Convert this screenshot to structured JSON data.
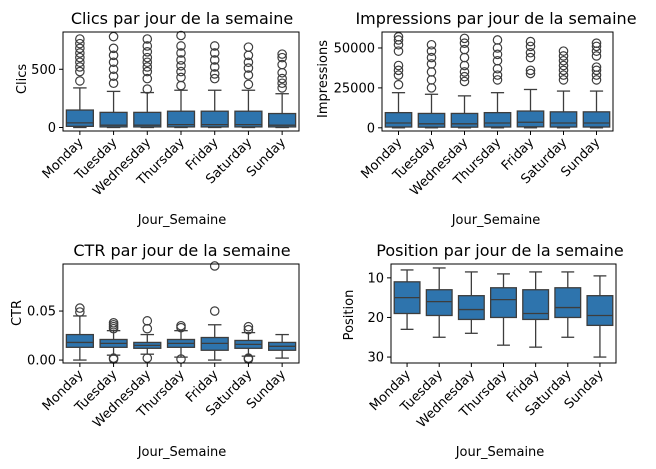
{
  "figure": {
    "background": "#ffffff",
    "box_color": "#2e74ad",
    "line_color": "#3d3d3d"
  },
  "chart_data": [
    {
      "type": "box",
      "title": "Clics par jour de la semaine",
      "xlabel": "Jour_Semaine",
      "ylabel": "Clics",
      "categories": [
        "Monday",
        "Tuesday",
        "Wednesday",
        "Thursday",
        "Friday",
        "Saturday",
        "Sunday"
      ],
      "ylim": [
        -30,
        820
      ],
      "yticks": [
        0,
        500
      ],
      "grid": false,
      "boxes": [
        {
          "whislo": 0,
          "q1": 10,
          "med": 40,
          "q3": 150,
          "whishi": 340,
          "fliers": [
            400,
            480,
            520,
            560,
            600,
            640,
            680,
            720,
            760
          ]
        },
        {
          "whislo": 0,
          "q1": 5,
          "med": 20,
          "q3": 130,
          "whishi": 310,
          "fliers": [
            380,
            440,
            500,
            560,
            620,
            680,
            780
          ]
        },
        {
          "whislo": 0,
          "q1": 5,
          "med": 20,
          "q3": 130,
          "whishi": 300,
          "fliers": [
            330,
            420,
            480,
            520,
            560,
            600,
            650,
            700,
            760
          ]
        },
        {
          "whislo": 0,
          "q1": 5,
          "med": 25,
          "q3": 140,
          "whishi": 320,
          "fliers": [
            360,
            430,
            480,
            530,
            580,
            640,
            700,
            790
          ]
        },
        {
          "whislo": 0,
          "q1": 5,
          "med": 25,
          "q3": 140,
          "whishi": 320,
          "fliers": [
            420,
            460,
            520,
            580,
            640,
            700
          ]
        },
        {
          "whislo": 0,
          "q1": 5,
          "med": 25,
          "q3": 140,
          "whishi": 320,
          "fliers": [
            370,
            450,
            510,
            560,
            620,
            690
          ]
        },
        {
          "whislo": 0,
          "q1": 5,
          "med": 20,
          "q3": 120,
          "whishi": 290,
          "fliers": [
            340,
            380,
            420,
            470,
            540,
            600,
            630
          ]
        }
      ]
    },
    {
      "type": "box",
      "title": "Impressions par jour de la semaine",
      "xlabel": "Jour_Semaine",
      "ylabel": "Impressions",
      "categories": [
        "Monday",
        "Tuesday",
        "Wednesday",
        "Thursday",
        "Friday",
        "Saturday",
        "Sunday"
      ],
      "ylim": [
        -2000,
        60000
      ],
      "yticks": [
        0,
        25000,
        50000
      ],
      "grid": false,
      "boxes": [
        {
          "whislo": 0,
          "q1": 500,
          "med": 3000,
          "q3": 9500,
          "whishi": 22000,
          "fliers": [
            27000,
            33000,
            36000,
            39000,
            48000,
            52000,
            55000,
            57000
          ]
        },
        {
          "whislo": 0,
          "q1": 400,
          "med": 2500,
          "q3": 9000,
          "whishi": 21000,
          "fliers": [
            25000,
            30000,
            35000,
            40000,
            44000,
            48000,
            52000
          ]
        },
        {
          "whislo": 0,
          "q1": 400,
          "med": 2500,
          "q3": 9000,
          "whishi": 20000,
          "fliers": [
            29000,
            32000,
            35000,
            39000,
            44000,
            49000,
            53000,
            56000
          ]
        },
        {
          "whislo": 0,
          "q1": 500,
          "med": 3000,
          "q3": 9500,
          "whishi": 22000,
          "fliers": [
            30000,
            33000,
            37000,
            42000,
            46000,
            50000,
            55000
          ]
        },
        {
          "whislo": 0,
          "q1": 600,
          "med": 3500,
          "q3": 10500,
          "whishi": 24000,
          "fliers": [
            34000,
            36000,
            44000,
            47000,
            51000,
            54000
          ]
        },
        {
          "whislo": 0,
          "q1": 500,
          "med": 3000,
          "q3": 10000,
          "whishi": 23000,
          "fliers": [
            30000,
            33000,
            36000,
            39000,
            42000,
            45000,
            48000
          ]
        },
        {
          "whislo": 0,
          "q1": 500,
          "med": 3000,
          "q3": 10000,
          "whishi": 23000,
          "fliers": [
            30000,
            33000,
            36000,
            38000,
            45000,
            48000,
            51000,
            53000
          ]
        }
      ]
    },
    {
      "type": "box",
      "title": "CTR par jour de la semaine",
      "xlabel": "Jour_Semaine",
      "ylabel": "CTR",
      "categories": [
        "Monday",
        "Tuesday",
        "Wednesday",
        "Thursday",
        "Friday",
        "Saturday",
        "Sunday"
      ],
      "ylim": [
        -0.003,
        0.098
      ],
      "yticks": [
        0.0,
        0.05
      ],
      "ytick_labels": [
        "0.00",
        "0.05"
      ],
      "grid": false,
      "boxes": [
        {
          "whislo": 0.0,
          "q1": 0.013,
          "med": 0.018,
          "q3": 0.026,
          "whishi": 0.045,
          "fliers": [
            0.049,
            0.053
          ]
        },
        {
          "whislo": 0.005,
          "q1": 0.013,
          "med": 0.017,
          "q3": 0.021,
          "whishi": 0.03,
          "fliers": [
            0.032,
            0.034,
            0.036,
            0.038,
            0.002,
            0.001
          ]
        },
        {
          "whislo": 0.006,
          "q1": 0.012,
          "med": 0.015,
          "q3": 0.018,
          "whishi": 0.026,
          "fliers": [
            0.032,
            0.04,
            0.002
          ]
        },
        {
          "whislo": 0.003,
          "q1": 0.013,
          "med": 0.017,
          "q3": 0.021,
          "whishi": 0.03,
          "fliers": [
            0.033,
            0.035,
            0.001
          ]
        },
        {
          "whislo": 0.0,
          "q1": 0.01,
          "med": 0.017,
          "q3": 0.023,
          "whishi": 0.036,
          "fliers": [
            0.05,
            0.096
          ]
        },
        {
          "whislo": 0.004,
          "q1": 0.012,
          "med": 0.016,
          "q3": 0.02,
          "whishi": 0.028,
          "fliers": [
            0.031,
            0.034,
            0.002,
            0.001
          ]
        },
        {
          "whislo": 0.002,
          "q1": 0.01,
          "med": 0.014,
          "q3": 0.018,
          "whishi": 0.026,
          "fliers": []
        }
      ]
    },
    {
      "type": "box",
      "title": "Position par jour de la semaine",
      "xlabel": "Jour_Semaine",
      "ylabel": "Position",
      "categories": [
        "Monday",
        "Tuesday",
        "Wednesday",
        "Thursday",
        "Friday",
        "Saturday",
        "Sunday"
      ],
      "ylim": [
        31.5,
        6.5
      ],
      "y_inverted": true,
      "yticks": [
        10,
        20,
        30
      ],
      "grid": false,
      "boxes": [
        {
          "whislo": 8,
          "q1": 11,
          "med": 15,
          "q3": 19,
          "whishi": 23,
          "fliers": []
        },
        {
          "whislo": 7.5,
          "q1": 13,
          "med": 16,
          "q3": 19.5,
          "whishi": 25,
          "fliers": []
        },
        {
          "whislo": 8.5,
          "q1": 14.5,
          "med": 18,
          "q3": 20.5,
          "whishi": 24,
          "fliers": []
        },
        {
          "whislo": 9,
          "q1": 12.5,
          "med": 15.5,
          "q3": 20,
          "whishi": 27,
          "fliers": []
        },
        {
          "whislo": 8.5,
          "q1": 13,
          "med": 19,
          "q3": 20.5,
          "whishi": 27.5,
          "fliers": []
        },
        {
          "whislo": 8.5,
          "q1": 12.5,
          "med": 17.5,
          "q3": 20,
          "whishi": 25,
          "fliers": []
        },
        {
          "whislo": 9.5,
          "q1": 14.5,
          "med": 19.5,
          "q3": 22,
          "whishi": 30,
          "fliers": []
        }
      ]
    }
  ]
}
